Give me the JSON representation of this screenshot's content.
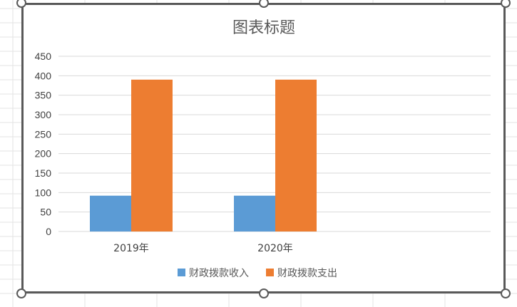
{
  "chart_data": {
    "type": "bar",
    "title": "图表标题",
    "categories": [
      "2019年",
      "2020年"
    ],
    "series": [
      {
        "name": "财政拨款收入",
        "values": [
          92,
          92
        ],
        "color": "#5B9BD5"
      },
      {
        "name": "财政拨款支出",
        "values": [
          390,
          390
        ],
        "color": "#ED7D31"
      }
    ],
    "ylim": [
      0,
      450
    ],
    "yticks": [
      0,
      50,
      100,
      150,
      200,
      250,
      300,
      350,
      400,
      450
    ],
    "grid": true,
    "legend": "bottom",
    "xlabel": "",
    "ylabel": ""
  },
  "colors": {
    "gridline": "#D9D9D9",
    "frame": "#595959",
    "sheet_grid": "#E3E3E3"
  }
}
